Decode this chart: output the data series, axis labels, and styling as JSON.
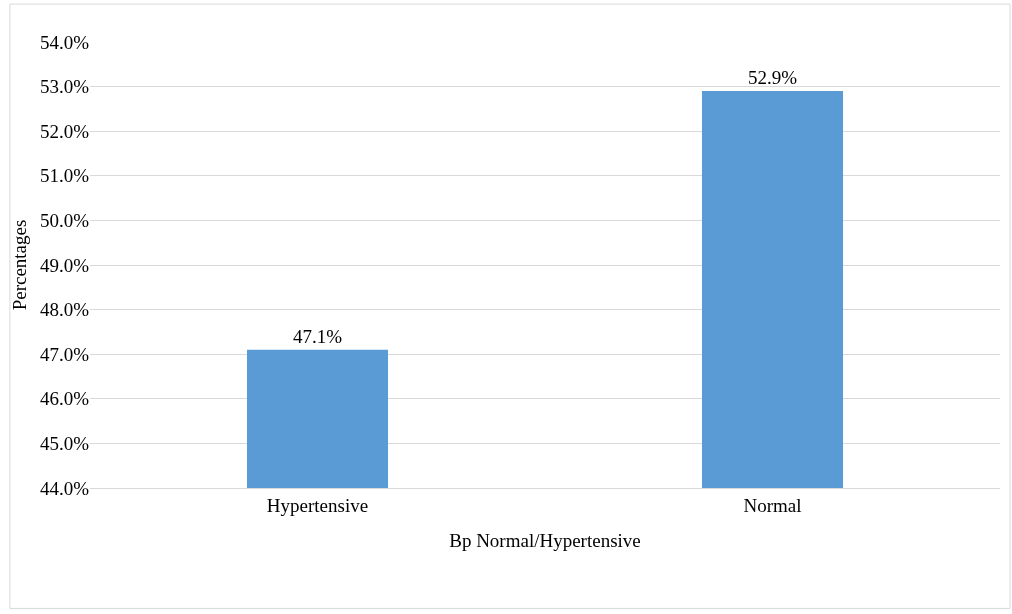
{
  "chart_data": {
    "type": "bar",
    "xlabel": "Bp Normal/Hypertensive",
    "ylabel": "Percentages",
    "categories": [
      "Hypertensive",
      "Normal"
    ],
    "values": [
      47.1,
      52.9
    ],
    "value_labels": [
      "47.1%",
      "52.9%"
    ],
    "color": "#5b9bd5",
    "ylim": [
      44,
      54
    ],
    "yticks": [
      {
        "value": 44,
        "label": "44.0%"
      },
      {
        "value": 45,
        "label": "45.0%"
      },
      {
        "value": 46,
        "label": "46.0%"
      },
      {
        "value": 47,
        "label": "47.0%"
      },
      {
        "value": 48,
        "label": "48.0%"
      },
      {
        "value": 49,
        "label": "49.0%"
      },
      {
        "value": 50,
        "label": "50.0%"
      },
      {
        "value": 51,
        "label": "51.0%"
      },
      {
        "value": 52,
        "label": "52.0%"
      },
      {
        "value": 53,
        "label": "53.0%"
      },
      {
        "value": 54,
        "label": "54.0%"
      }
    ],
    "grid": "y"
  }
}
